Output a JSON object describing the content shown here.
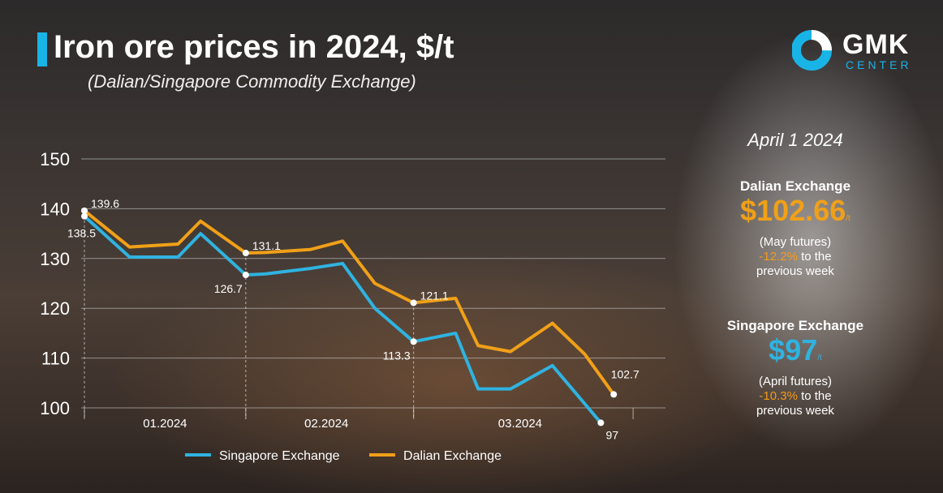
{
  "header": {
    "title": "Iron ore prices in 2024, $/t",
    "subtitle": "(Dalian/Singapore Commodity Exchange)"
  },
  "logo": {
    "name": "GMK",
    "sub": "CENTER"
  },
  "colors": {
    "singapore": "#2fb3e0",
    "dalian": "#f0a018",
    "accent": "#19b4e6",
    "negative": "#f59a17"
  },
  "panel": {
    "date": "April 1 2024",
    "dalian": {
      "name": "Dalian Exchange",
      "price": "$102.66",
      "unit": "/t",
      "contract": "(May futures)",
      "change": "-12.2%",
      "change_suffix": " to the",
      "note": "previous week"
    },
    "singapore": {
      "name": "Singapore Exchange",
      "price": "$97",
      "unit": "/t",
      "contract": "(April futures)",
      "change": "-10.3%",
      "change_suffix": " to the",
      "note": "previous week"
    }
  },
  "legend": {
    "singapore": "Singapore Exchange",
    "dalian": "Dalian Exchange"
  },
  "chart_data": {
    "type": "line",
    "title": "Iron ore prices in 2024, $/t",
    "ylim": [
      100,
      150
    ],
    "yticks": [
      100,
      110,
      120,
      130,
      140,
      150
    ],
    "x_range": [
      0,
      17.5
    ],
    "month_labels": [
      {
        "label": "01.2024",
        "center": 2.5
      },
      {
        "label": "02.2024",
        "center": 7.5
      },
      {
        "label": "03.2024",
        "center": 13.5
      }
    ],
    "month_dividers": [
      0,
      5,
      10.2,
      17
    ],
    "series": [
      {
        "name": "Singapore Exchange",
        "key": "singapore",
        "x": [
          0,
          1.4,
          2.9,
          3.6,
          5,
          5.6,
          7,
          8,
          9,
          10.2,
          11.5,
          12.2,
          13.2,
          14.5,
          16
        ],
        "values": [
          138.5,
          130.3,
          130.3,
          135.0,
          126.7,
          126.9,
          128.0,
          129.0,
          120.0,
          113.3,
          115.0,
          103.8,
          103.8,
          108.5,
          97.0
        ]
      },
      {
        "name": "Dalian Exchange",
        "key": "dalian",
        "x": [
          0,
          1.4,
          2.9,
          3.6,
          5,
          5.6,
          7,
          8,
          9,
          10.2,
          11.5,
          12.2,
          13.2,
          14.5,
          15.5,
          16.4
        ],
        "values": [
          139.6,
          132.3,
          132.9,
          137.5,
          131.1,
          131.2,
          131.8,
          133.5,
          125.0,
          121.1,
          122.0,
          112.5,
          111.3,
          117.0,
          110.8,
          102.7
        ]
      }
    ],
    "annotations": [
      {
        "series": "dalian",
        "index": 0,
        "label": "139.6",
        "pos": "right-top"
      },
      {
        "series": "singapore",
        "index": 0,
        "label": "138.5",
        "pos": "below-left"
      },
      {
        "series": "dalian",
        "index": 4,
        "label": "131.1",
        "pos": "right-top"
      },
      {
        "series": "singapore",
        "index": 4,
        "label": "126.7",
        "pos": "below-left"
      },
      {
        "series": "dalian",
        "index": 9,
        "label": "121.1",
        "pos": "right-top"
      },
      {
        "series": "singapore",
        "index": 9,
        "label": "113.3",
        "pos": "below-left"
      },
      {
        "series": "dalian",
        "index": 15,
        "label": "102.7",
        "pos": "above"
      },
      {
        "series": "singapore",
        "index": 14,
        "label": "97",
        "pos": "below-right"
      }
    ],
    "guides": [
      {
        "x": 0,
        "value": 139.6
      },
      {
        "x": 5,
        "value": 131.1
      },
      {
        "x": 10.2,
        "value": 121.1
      }
    ]
  }
}
